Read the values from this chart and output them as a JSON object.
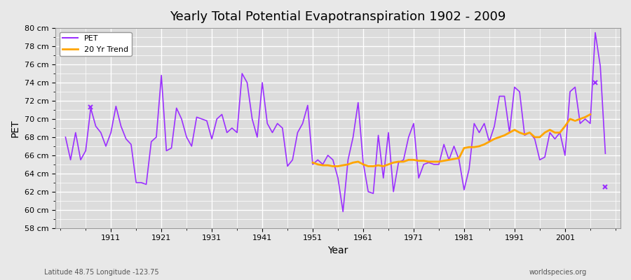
{
  "title": "Yearly Total Potential Evapotranspiration 1902 - 2009",
  "xlabel": "Year",
  "ylabel": "PET",
  "lat_lon_label": "Latitude 48.75 Longitude -123.75",
  "watermark": "worldspecies.org",
  "ylim": [
    58,
    80
  ],
  "ytick_labels": [
    "58 cm",
    "60 cm",
    "62 cm",
    "64 cm",
    "66 cm",
    "68 cm",
    "70 cm",
    "72 cm",
    "74 cm",
    "76 cm",
    "78 cm",
    "80 cm"
  ],
  "ytick_values": [
    58,
    60,
    62,
    64,
    66,
    68,
    70,
    72,
    74,
    76,
    78,
    80
  ],
  "xlim": [
    1900,
    2012
  ],
  "xtick_values": [
    1911,
    1921,
    1931,
    1941,
    1951,
    1961,
    1971,
    1981,
    1991,
    2001
  ],
  "pet_color": "#9B30FF",
  "trend_color": "#FFA500",
  "bg_color": "#E8E8E8",
  "plot_bg_color": "#DCDCDC",
  "grid_color": "#FFFFFF",
  "pet_years": [
    1902,
    1903,
    1904,
    1905,
    1906,
    1907,
    1908,
    1909,
    1910,
    1911,
    1912,
    1913,
    1914,
    1915,
    1916,
    1917,
    1918,
    1919,
    1920,
    1921,
    1922,
    1923,
    1924,
    1925,
    1926,
    1927,
    1928,
    1929,
    1930,
    1931,
    1932,
    1933,
    1934,
    1935,
    1936,
    1937,
    1938,
    1939,
    1940,
    1941,
    1942,
    1943,
    1944,
    1945,
    1946,
    1947,
    1948,
    1949,
    1950,
    1951,
    1952,
    1953,
    1954,
    1955,
    1956,
    1957,
    1958,
    1959,
    1960,
    1961,
    1962,
    1963,
    1964,
    1965,
    1966,
    1967,
    1968,
    1969,
    1970,
    1971,
    1972,
    1973,
    1974,
    1975,
    1976,
    1977,
    1978,
    1979,
    1980,
    1981,
    1982,
    1983,
    1984,
    1985,
    1986,
    1987,
    1988,
    1989,
    1990,
    1991,
    1992,
    1993,
    1994,
    1995,
    1996,
    1997,
    1998,
    1999,
    2000,
    2001,
    2002,
    2003,
    2004,
    2005,
    2006,
    2007,
    2008,
    2009
  ],
  "pet_values": [
    68.0,
    65.5,
    68.5,
    65.5,
    66.5,
    71.2,
    69.2,
    68.5,
    67.0,
    68.5,
    71.4,
    69.2,
    67.8,
    67.2,
    63.0,
    63.0,
    62.8,
    67.5,
    68.0,
    74.8,
    66.5,
    66.8,
    71.2,
    70.0,
    68.0,
    67.0,
    70.2,
    70.0,
    69.8,
    67.8,
    70.0,
    70.5,
    68.5,
    69.0,
    68.5,
    75.0,
    74.0,
    70.0,
    68.0,
    74.0,
    69.5,
    68.5,
    69.5,
    69.0,
    64.8,
    65.5,
    68.5,
    69.5,
    71.5,
    65.0,
    65.5,
    65.0,
    66.0,
    65.5,
    63.5,
    59.8,
    65.5,
    68.0,
    71.8,
    65.2,
    62.0,
    61.8,
    68.2,
    63.5,
    68.5,
    62.0,
    65.2,
    65.5,
    68.0,
    69.5,
    63.5,
    65.0,
    65.2,
    65.0,
    65.0,
    67.2,
    65.5,
    67.0,
    65.5,
    62.2,
    64.5,
    69.5,
    68.5,
    69.5,
    67.5,
    69.2,
    72.5,
    72.5,
    68.5,
    73.5,
    73.0,
    68.2,
    68.5,
    67.8,
    65.5,
    65.8,
    68.5,
    67.8,
    68.5,
    66.0,
    73.0,
    73.5,
    69.5,
    70.0,
    69.5,
    79.5,
    75.8,
    66.2
  ],
  "isolated_points": [
    {
      "year": 1907,
      "value": 71.3
    },
    {
      "year": 2007,
      "value": 74.0
    },
    {
      "year": 2009,
      "value": 62.5
    }
  ],
  "trend_years": [
    1951,
    1952,
    1953,
    1954,
    1955,
    1956,
    1957,
    1958,
    1959,
    1960,
    1961,
    1962,
    1963,
    1964,
    1965,
    1966,
    1967,
    1968,
    1969,
    1970,
    1971,
    1972,
    1973,
    1974,
    1975,
    1976,
    1977,
    1978,
    1979,
    1980,
    1981,
    1982,
    1983,
    1984,
    1985,
    1986,
    1987,
    1988,
    1989,
    1990,
    1991,
    1992,
    1993,
    1994,
    1995,
    1996,
    1997,
    1998,
    1999,
    2000,
    2001,
    2002,
    2003,
    2004,
    2005,
    2006
  ],
  "trend_values": [
    65.2,
    65.0,
    64.9,
    64.9,
    64.8,
    64.8,
    64.9,
    65.0,
    65.2,
    65.3,
    65.0,
    64.8,
    64.8,
    64.9,
    64.8,
    65.0,
    65.2,
    65.3,
    65.3,
    65.5,
    65.5,
    65.4,
    65.4,
    65.3,
    65.3,
    65.3,
    65.4,
    65.5,
    65.6,
    65.7,
    66.8,
    66.9,
    66.9,
    67.0,
    67.2,
    67.5,
    67.8,
    68.0,
    68.2,
    68.5,
    68.8,
    68.5,
    68.3,
    68.5,
    68.0,
    68.0,
    68.5,
    68.8,
    68.5,
    68.5,
    69.2,
    70.0,
    69.8,
    70.0,
    70.2,
    70.5
  ]
}
